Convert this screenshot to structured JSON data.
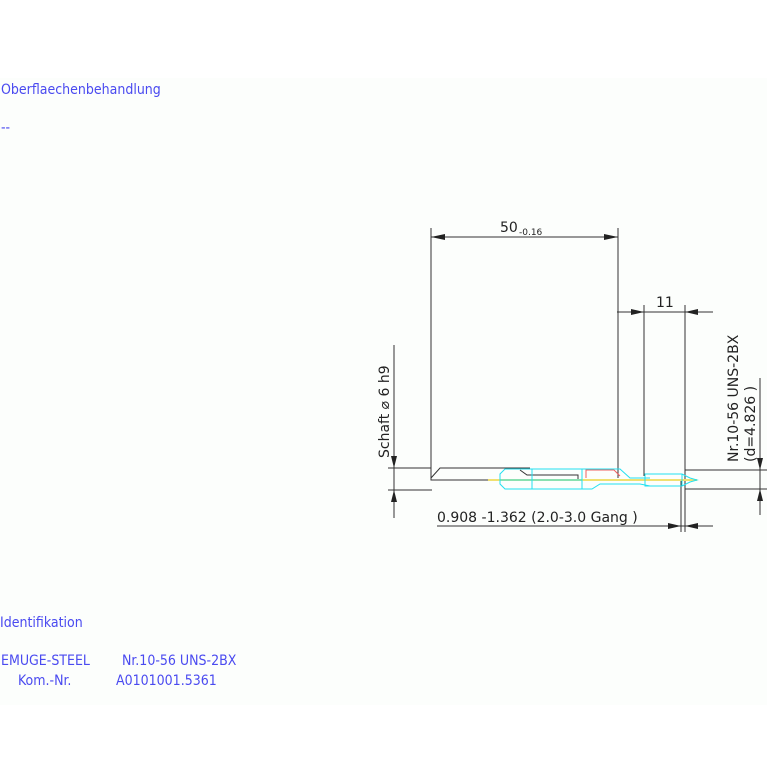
{
  "header": {
    "title": "Oberflaechenbehandlung",
    "value": "--"
  },
  "identification": {
    "title": "Identifikation",
    "line1_left": "EMUGE-STEEL",
    "line1_right": "Nr.10-56 UNS-2BX",
    "line2_left": "Kom.-Nr.",
    "line2_right": "A0101001.5361"
  },
  "drawing": {
    "length_dim": "50",
    "length_tol": "-0.16",
    "thread_length_dim": "11",
    "shank_label": "Schaft ⌀ 6 h9",
    "thread_label": "Nr.10-56 UNS-2BX",
    "thread_diameter": "(d=4.826 )",
    "chamfer_label": "0.908 -1.362 (2.0-3.0 Gang )"
  },
  "colors": {
    "text": "#4a4af0",
    "outline": "#22e0f0",
    "accent": "#f06060",
    "centerline": "#f0e070"
  }
}
